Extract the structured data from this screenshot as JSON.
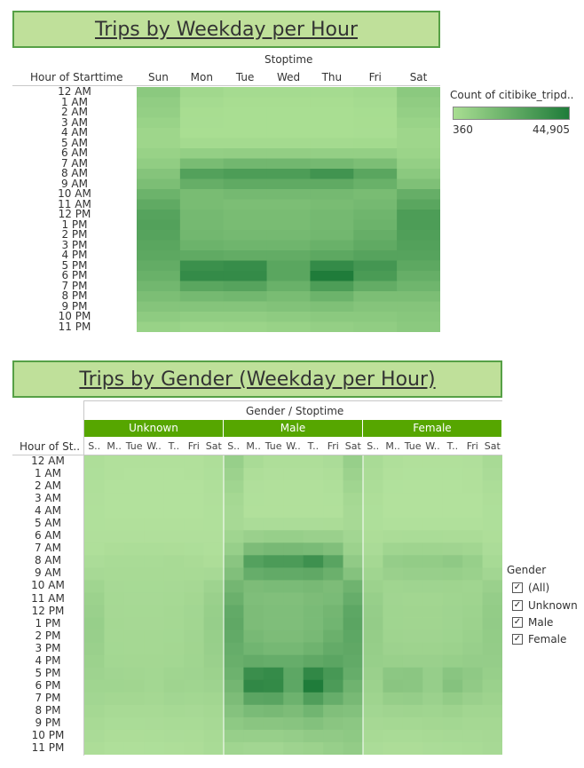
{
  "chart1": {
    "title": "Trips by Weekday per Hour",
    "col_group_label": "Stoptime",
    "row_header": "Hour of Starttime",
    "legend_title": "Count of citibike_tripd..",
    "legend_min": "360",
    "legend_max": "44,905"
  },
  "chart2": {
    "title": "Trips by Gender (Weekday per Hour)",
    "col_group_label": "Gender / Stoptime",
    "row_header": "Hour of St..",
    "genders": [
      "Unknown",
      "Male",
      "Female"
    ],
    "day_labels_short": [
      "S..",
      "M..",
      "Tue",
      "W..",
      "T..",
      "Fri",
      "Sat"
    ]
  },
  "filter": {
    "title": "Gender",
    "options": [
      {
        "label": "(All)",
        "checked": true
      },
      {
        "label": "Unknown",
        "checked": true
      },
      {
        "label": "Male",
        "checked": true
      },
      {
        "label": "Female",
        "checked": true
      }
    ]
  },
  "chart_data": [
    {
      "type": "heatmap",
      "title": "Trips by Weekday per Hour",
      "xlabel": "Stoptime",
      "ylabel": "Hour of Starttime",
      "x": [
        "Sun",
        "Mon",
        "Tue",
        "Wed",
        "Thu",
        "Fri",
        "Sat"
      ],
      "y": [
        "12 AM",
        "1 AM",
        "2 AM",
        "3 AM",
        "4 AM",
        "5 AM",
        "6 AM",
        "7 AM",
        "8 AM",
        "9 AM",
        "10 AM",
        "11 AM",
        "12 PM",
        "1 PM",
        "2 PM",
        "3 PM",
        "4 PM",
        "5 PM",
        "6 PM",
        "7 PM",
        "8 PM",
        "9 PM",
        "10 PM",
        "11 PM"
      ],
      "range": [
        360,
        44905
      ],
      "colors": [
        "#a9de92",
        "#1f7c3a"
      ],
      "values": [
        [
          10000,
          3000,
          1500,
          1500,
          1500,
          2500,
          10000
        ],
        [
          8000,
          1500,
          800,
          800,
          800,
          1500,
          8500
        ],
        [
          7000,
          800,
          500,
          500,
          500,
          1000,
          7000
        ],
        [
          5500,
          600,
          400,
          400,
          400,
          700,
          5500
        ],
        [
          4000,
          500,
          360,
          360,
          400,
          600,
          4000
        ],
        [
          4000,
          2000,
          2000,
          2000,
          2000,
          2200,
          4000
        ],
        [
          6000,
          7000,
          7500,
          7500,
          7000,
          7000,
          5000
        ],
        [
          8000,
          16000,
          18000,
          18000,
          17000,
          15000,
          7000
        ],
        [
          12000,
          28000,
          30000,
          30000,
          34000,
          26000,
          10000
        ],
        [
          15000,
          22000,
          24000,
          24000,
          24000,
          21000,
          14000
        ],
        [
          20000,
          16000,
          17000,
          17000,
          17000,
          16000,
          22000
        ],
        [
          24000,
          16000,
          15000,
          15000,
          16000,
          17000,
          26000
        ],
        [
          27000,
          17000,
          16000,
          16000,
          17000,
          19000,
          30000
        ],
        [
          28000,
          17000,
          16000,
          16000,
          17000,
          20000,
          30000
        ],
        [
          27000,
          18000,
          17000,
          17000,
          18000,
          22000,
          29000
        ],
        [
          26000,
          20000,
          19000,
          19000,
          21000,
          24000,
          28000
        ],
        [
          25000,
          24000,
          23000,
          23000,
          25000,
          27000,
          27000
        ],
        [
          23000,
          36000,
          37000,
          26000,
          38000,
          33000,
          25000
        ],
        [
          21000,
          38000,
          38000,
          26000,
          45000,
          31000,
          22000
        ],
        [
          18000,
          26000,
          27000,
          21000,
          30000,
          23000,
          19000
        ],
        [
          15000,
          17000,
          18000,
          16000,
          20000,
          15000,
          15000
        ],
        [
          12000,
          12000,
          12000,
          13000,
          14000,
          12000,
          12000
        ],
        [
          9000,
          8000,
          8000,
          9000,
          10000,
          10000,
          11000
        ],
        [
          6000,
          4500,
          5000,
          6000,
          7000,
          8000,
          10000
        ]
      ]
    },
    {
      "type": "heatmap",
      "title": "Trips by Gender (Weekday per Hour)",
      "xlabel": "Gender / Stoptime",
      "ylabel": "Hour of St..",
      "groups": [
        "Unknown",
        "Male",
        "Female"
      ],
      "x": [
        "Sun",
        "Mon",
        "Tue",
        "Wed",
        "Thu",
        "Fri",
        "Sat"
      ],
      "y": [
        "12 AM",
        "1 AM",
        "2 AM",
        "3 AM",
        "4 AM",
        "5 AM",
        "6 AM",
        "7 AM",
        "8 AM",
        "9 AM",
        "10 AM",
        "11 AM",
        "12 PM",
        "1 PM",
        "2 PM",
        "3 PM",
        "4 PM",
        "5 PM",
        "6 PM",
        "7 PM",
        "8 PM",
        "9 PM",
        "10 PM",
        "11 PM"
      ],
      "range": [
        0,
        33000
      ],
      "colors": [
        "#b2e19c",
        "#1f7c3a"
      ],
      "values": {
        "Unknown": [
          [
            1000,
            300,
            200,
            200,
            200,
            300,
            1000
          ],
          [
            800,
            200,
            100,
            100,
            100,
            200,
            800
          ],
          [
            700,
            100,
            50,
            50,
            50,
            100,
            700
          ],
          [
            500,
            50,
            30,
            30,
            30,
            50,
            500
          ],
          [
            400,
            50,
            30,
            30,
            30,
            50,
            400
          ],
          [
            400,
            200,
            200,
            200,
            200,
            200,
            400
          ],
          [
            500,
            500,
            500,
            500,
            500,
            500,
            500
          ],
          [
            700,
            1200,
            1300,
            1300,
            1200,
            1100,
            600
          ],
          [
            1500,
            2000,
            2100,
            2100,
            2300,
            1900,
            1200
          ],
          [
            2500,
            2200,
            2200,
            2200,
            2300,
            2200,
            2500
          ],
          [
            4000,
            2500,
            2400,
            2400,
            2500,
            2800,
            4500
          ],
          [
            5000,
            2600,
            2500,
            2500,
            2700,
            3200,
            5500
          ],
          [
            5500,
            2800,
            2700,
            2700,
            2900,
            3500,
            6000
          ],
          [
            6000,
            3000,
            2800,
            2800,
            3000,
            3700,
            6200
          ],
          [
            5800,
            3000,
            2900,
            2900,
            3100,
            3800,
            6000
          ],
          [
            5500,
            3100,
            3000,
            3000,
            3200,
            3900,
            5800
          ],
          [
            5000,
            3300,
            3200,
            3200,
            3400,
            4000,
            5500
          ],
          [
            4500,
            3800,
            3700,
            3400,
            4000,
            4200,
            5000
          ],
          [
            4000,
            4000,
            3900,
            3400,
            4300,
            4000,
            4500
          ],
          [
            3500,
            3200,
            3200,
            2900,
            3500,
            3300,
            3700
          ],
          [
            3000,
            2300,
            2300,
            2200,
            2600,
            2500,
            3000
          ],
          [
            2300,
            1700,
            1700,
            1800,
            2000,
            2000,
            2500
          ],
          [
            1800,
            1200,
            1200,
            1300,
            1500,
            1600,
            2200
          ],
          [
            1200,
            700,
            700,
            800,
            1000,
            1200,
            2000
          ]
        ],
        "Male": [
          [
            6000,
            2000,
            1000,
            1000,
            1000,
            1500,
            6000
          ],
          [
            5000,
            1000,
            500,
            500,
            500,
            1000,
            5000
          ],
          [
            4000,
            500,
            300,
            300,
            300,
            700,
            4000
          ],
          [
            3000,
            400,
            200,
            200,
            200,
            400,
            3000
          ],
          [
            2500,
            300,
            200,
            200,
            200,
            300,
            2500
          ],
          [
            2500,
            1500,
            1500,
            1500,
            1500,
            1600,
            2500
          ],
          [
            4000,
            5500,
            6000,
            6000,
            5500,
            5500,
            3500
          ],
          [
            6000,
            12000,
            13000,
            13000,
            12500,
            11000,
            5000
          ],
          [
            9000,
            21000,
            23000,
            23000,
            26000,
            20000,
            7500
          ],
          [
            11000,
            17000,
            18000,
            18000,
            18500,
            16000,
            10000
          ],
          [
            14000,
            12000,
            12500,
            12500,
            13000,
            12000,
            15000
          ],
          [
            16000,
            11500,
            11000,
            11000,
            12000,
            12500,
            17000
          ],
          [
            18000,
            12000,
            11500,
            11500,
            12500,
            14000,
            19000
          ],
          [
            18500,
            12000,
            11500,
            11500,
            12500,
            14500,
            19500
          ],
          [
            18000,
            13000,
            12000,
            12000,
            13000,
            16000,
            19000
          ],
          [
            17000,
            14500,
            13500,
            13500,
            15000,
            17500,
            18500
          ],
          [
            16500,
            17500,
            17000,
            17000,
            18500,
            19500,
            18000
          ],
          [
            15500,
            27000,
            28000,
            19000,
            29000,
            24000,
            17000
          ],
          [
            14000,
            29000,
            28500,
            19000,
            33000,
            23000,
            15000
          ],
          [
            12000,
            19500,
            20000,
            15500,
            22000,
            17000,
            13000
          ],
          [
            10000,
            12500,
            13000,
            12000,
            14500,
            11000,
            10500
          ],
          [
            8000,
            9000,
            9000,
            9500,
            10500,
            9000,
            8500
          ],
          [
            6000,
            6000,
            6000,
            6500,
            7500,
            7500,
            8000
          ],
          [
            4000,
            3500,
            3500,
            4500,
            5000,
            6000,
            7000
          ]
        ],
        "Female": [
          [
            2000,
            600,
            300,
            300,
            300,
            500,
            2200
          ],
          [
            1600,
            300,
            150,
            150,
            150,
            300,
            1800
          ],
          [
            1300,
            150,
            80,
            80,
            80,
            200,
            1400
          ],
          [
            1000,
            100,
            50,
            50,
            50,
            100,
            1000
          ],
          [
            800,
            80,
            50,
            50,
            50,
            80,
            800
          ],
          [
            800,
            400,
            400,
            400,
            400,
            450,
            800
          ],
          [
            1200,
            1600,
            1700,
            1700,
            1600,
            1600,
            1000
          ],
          [
            1800,
            4000,
            4300,
            4300,
            4100,
            3700,
            1500
          ],
          [
            3000,
            6500,
            7000,
            7000,
            7800,
            6000,
            2400
          ],
          [
            4000,
            5500,
            5800,
            5800,
            6000,
            5300,
            3500
          ],
          [
            5000,
            4000,
            4200,
            4200,
            4300,
            4000,
            5500
          ],
          [
            6000,
            3800,
            3700,
            3700,
            4000,
            4300,
            6500
          ],
          [
            6500,
            4000,
            3900,
            3900,
            4200,
            4700,
            7000
          ],
          [
            6800,
            4000,
            3900,
            3900,
            4200,
            4900,
            7200
          ],
          [
            6600,
            4300,
            4100,
            4100,
            4400,
            5300,
            7000
          ],
          [
            6300,
            4800,
            4600,
            4600,
            5000,
            5800,
            6800
          ],
          [
            6000,
            5700,
            5500,
            5500,
            6000,
            6500,
            6500
          ],
          [
            5500,
            8500,
            8800,
            6200,
            9200,
            7800,
            6000
          ],
          [
            5000,
            9000,
            8800,
            6200,
            10000,
            7500,
            5300
          ],
          [
            4300,
            6300,
            6500,
            5100,
            7000,
            5500,
            4600
          ],
          [
            3500,
            4100,
            4300,
            4000,
            4600,
            3700,
            3700
          ],
          [
            2800,
            2900,
            3000,
            3200,
            3400,
            3000,
            3000
          ],
          [
            2200,
            2000,
            2000,
            2200,
            2500,
            2500,
            2800
          ],
          [
            1500,
            1200,
            1200,
            1500,
            1700,
            2000,
            2500
          ]
        ]
      }
    }
  ]
}
